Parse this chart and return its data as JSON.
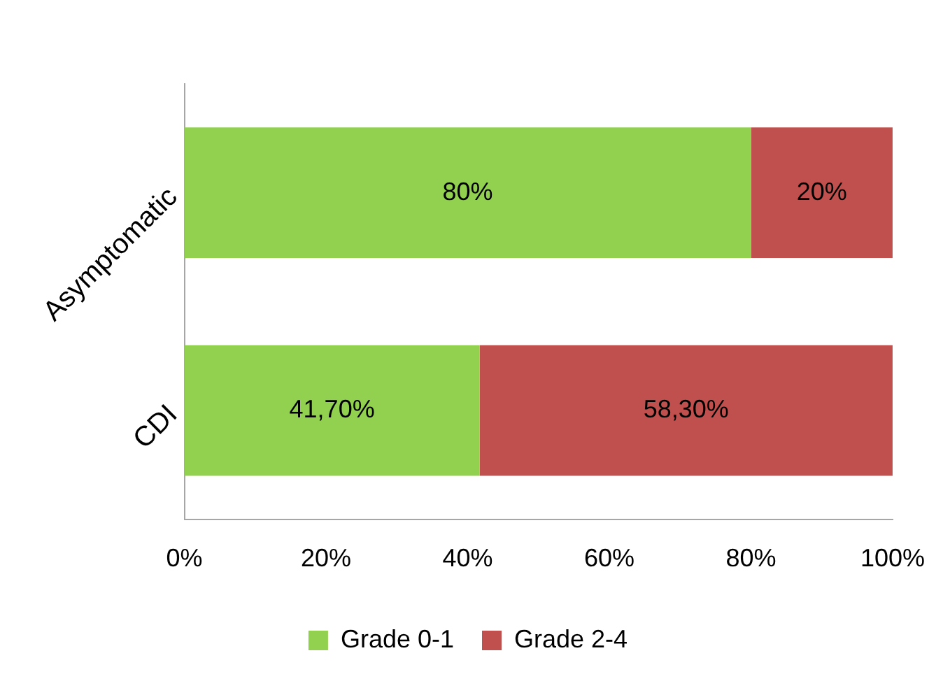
{
  "chart_data": {
    "type": "bar",
    "orientation": "horizontal",
    "stacked": true,
    "categories": [
      "Asymptomatic",
      "CDI"
    ],
    "series": [
      {
        "name": "Grade 0-1",
        "color": "#92d050",
        "values": [
          80,
          41.7
        ],
        "value_labels": [
          "80%",
          "41,70%"
        ]
      },
      {
        "name": "Grade 2-4",
        "color": "#c0504d",
        "values": [
          20,
          58.3
        ],
        "value_labels": [
          "20%",
          "58,30%"
        ]
      }
    ],
    "xlim": [
      0,
      100
    ],
    "xticks": [
      {
        "value": 0,
        "label": "0%"
      },
      {
        "value": 20,
        "label": "20%"
      },
      {
        "value": 40,
        "label": "40%"
      },
      {
        "value": 60,
        "label": "60%"
      },
      {
        "value": 80,
        "label": "80%"
      },
      {
        "value": 100,
        "label": "100%"
      }
    ],
    "grid": false,
    "legend": "bottom"
  }
}
